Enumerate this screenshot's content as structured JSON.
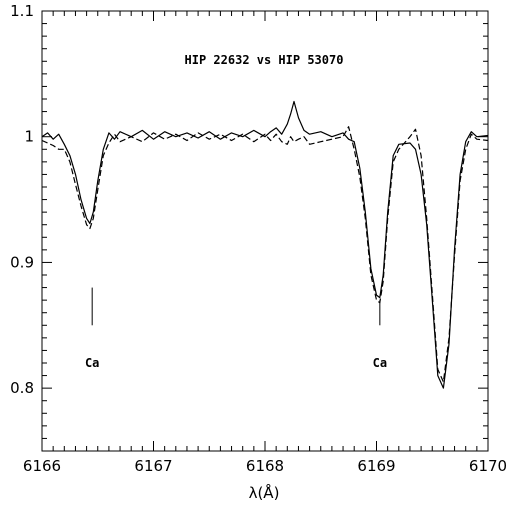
{
  "chart_data": {
    "type": "line",
    "title": "HIP 22632 vs HIP 53070",
    "xlabel": "λ(Å)",
    "ylabel": "",
    "xlim": [
      6166,
      6170
    ],
    "ylim": [
      0.75,
      1.1
    ],
    "xticks_major": [
      6166,
      6167,
      6168,
      6169,
      6170
    ],
    "xtick_labels": [
      "6166",
      "6167",
      "6168",
      "6169",
      "6170"
    ],
    "yticks_major": [
      0.8,
      0.9,
      1.0,
      1.1
    ],
    "ytick_labels": [
      "0.8",
      "0.9",
      "1",
      "1.1"
    ],
    "grid": false,
    "series": [
      {
        "style": "solid",
        "color": "#000000",
        "x": [
          6166.0,
          6166.05,
          6166.1,
          6166.15,
          6166.2,
          6166.25,
          6166.3,
          6166.35,
          6166.4,
          6166.43,
          6166.46,
          6166.5,
          6166.55,
          6166.6,
          6166.65,
          6166.7,
          6166.8,
          6166.9,
          6167.0,
          6167.1,
          6167.2,
          6167.3,
          6167.4,
          6167.5,
          6167.6,
          6167.7,
          6167.8,
          6167.9,
          6168.0,
          6168.05,
          6168.1,
          6168.15,
          6168.2,
          6168.23,
          6168.26,
          6168.3,
          6168.35,
          6168.4,
          6168.5,
          6168.6,
          6168.7,
          6168.75,
          6168.8,
          6168.85,
          6168.9,
          6168.95,
          6169.0,
          6169.03,
          6169.06,
          6169.1,
          6169.15,
          6169.2,
          6169.3,
          6169.35,
          6169.4,
          6169.45,
          6169.5,
          6169.55,
          6169.6,
          6169.65,
          6169.7,
          6169.75,
          6169.8,
          6169.85,
          6169.9,
          6170.0
        ],
        "y": [
          1.0,
          1.003,
          0.998,
          1.002,
          0.994,
          0.985,
          0.97,
          0.95,
          0.935,
          0.931,
          0.94,
          0.965,
          0.99,
          1.003,
          0.998,
          1.004,
          1.0,
          1.005,
          0.998,
          1.004,
          1.0,
          1.003,
          0.999,
          1.004,
          0.998,
          1.003,
          1.0,
          1.005,
          1.0,
          1.004,
          1.007,
          1.002,
          1.01,
          1.018,
          1.028,
          1.015,
          1.005,
          1.002,
          1.004,
          1.0,
          1.003,
          0.998,
          0.996,
          0.975,
          0.94,
          0.895,
          0.874,
          0.872,
          0.89,
          0.94,
          0.985,
          0.994,
          0.995,
          0.99,
          0.97,
          0.93,
          0.87,
          0.81,
          0.8,
          0.835,
          0.91,
          0.97,
          0.996,
          1.004,
          1.0,
          1.001
        ]
      },
      {
        "style": "dashed",
        "color": "#000000",
        "x": [
          6166.0,
          6166.05,
          6166.1,
          6166.15,
          6166.2,
          6166.25,
          6166.3,
          6166.35,
          6166.4,
          6166.43,
          6166.46,
          6166.5,
          6166.55,
          6166.6,
          6166.65,
          6166.7,
          6166.8,
          6166.9,
          6167.0,
          6167.1,
          6167.2,
          6167.3,
          6167.4,
          6167.5,
          6167.6,
          6167.7,
          6167.8,
          6167.9,
          6168.0,
          6168.05,
          6168.1,
          6168.15,
          6168.2,
          6168.23,
          6168.26,
          6168.3,
          6168.35,
          6168.4,
          6168.5,
          6168.6,
          6168.7,
          6168.75,
          6168.8,
          6168.85,
          6168.9,
          6168.95,
          6169.0,
          6169.03,
          6169.06,
          6169.1,
          6169.15,
          6169.2,
          6169.3,
          6169.35,
          6169.4,
          6169.45,
          6169.5,
          6169.55,
          6169.6,
          6169.65,
          6169.7,
          6169.75,
          6169.8,
          6169.85,
          6169.9,
          6170.0
        ],
        "y": [
          0.997,
          0.995,
          0.993,
          0.99,
          0.99,
          0.98,
          0.962,
          0.945,
          0.93,
          0.927,
          0.935,
          0.958,
          0.985,
          0.995,
          1.002,
          0.996,
          1.0,
          0.996,
          1.003,
          0.998,
          1.002,
          0.997,
          1.003,
          0.998,
          1.002,
          0.997,
          1.002,
          0.996,
          1.002,
          0.997,
          1.002,
          0.996,
          0.994,
          1.0,
          0.996,
          0.998,
          1.0,
          0.994,
          0.996,
          0.998,
          1.0,
          1.008,
          0.99,
          0.968,
          0.935,
          0.89,
          0.87,
          0.868,
          0.885,
          0.935,
          0.98,
          0.99,
          1.0,
          1.006,
          0.985,
          0.935,
          0.875,
          0.815,
          0.805,
          0.84,
          0.905,
          0.965,
          0.99,
          1.002,
          0.998,
          0.997
        ]
      }
    ],
    "annotations": [
      {
        "text": "Ca",
        "x": 6166.45,
        "y": 0.82,
        "marker_y": [
          0.85,
          0.88
        ]
      },
      {
        "text": "Ca",
        "x": 6169.03,
        "y": 0.82,
        "marker_y": [
          0.85,
          0.87
        ]
      }
    ]
  }
}
